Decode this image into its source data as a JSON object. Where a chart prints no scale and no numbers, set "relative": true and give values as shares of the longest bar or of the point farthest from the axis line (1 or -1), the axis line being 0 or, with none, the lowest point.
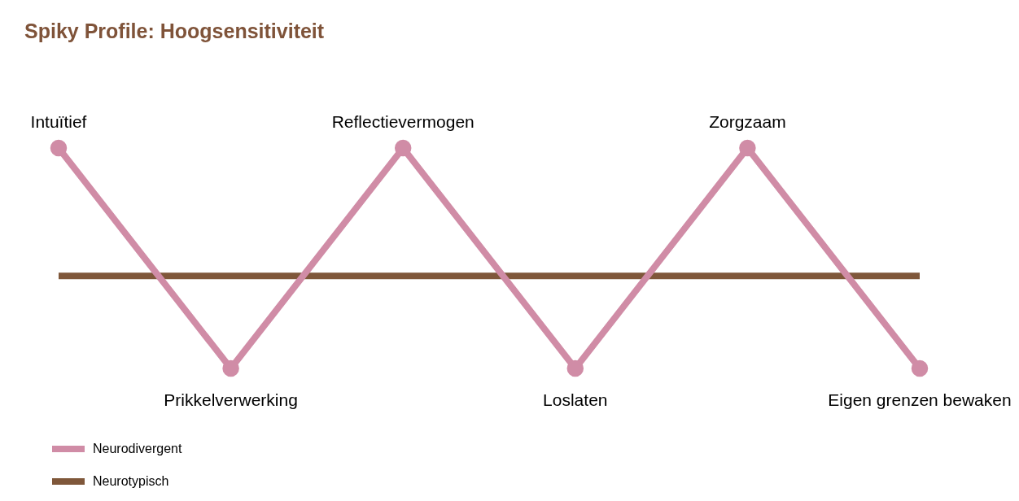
{
  "chart_data": {
    "type": "line",
    "title": "Spiky Profile: Hoogsensitiviteit",
    "relative": true,
    "categories": [
      "Intuïtief",
      "Prikkelverwerking",
      "Reflectievermogen",
      "Loslaten",
      "Zorgzaam",
      "Eigen grenzen bewaken"
    ],
    "legend": "bottom left",
    "series": [
      {
        "name": "Neurodivergent",
        "color": "#d08ca6",
        "values": [
          1,
          0,
          1,
          0,
          1,
          0
        ],
        "marker": "circle"
      },
      {
        "name": "Neurotypisch",
        "color": "#7f573a",
        "values": [
          0.42,
          0.42,
          0.42,
          0.42,
          0.42,
          0.42
        ],
        "marker": "none"
      }
    ]
  }
}
